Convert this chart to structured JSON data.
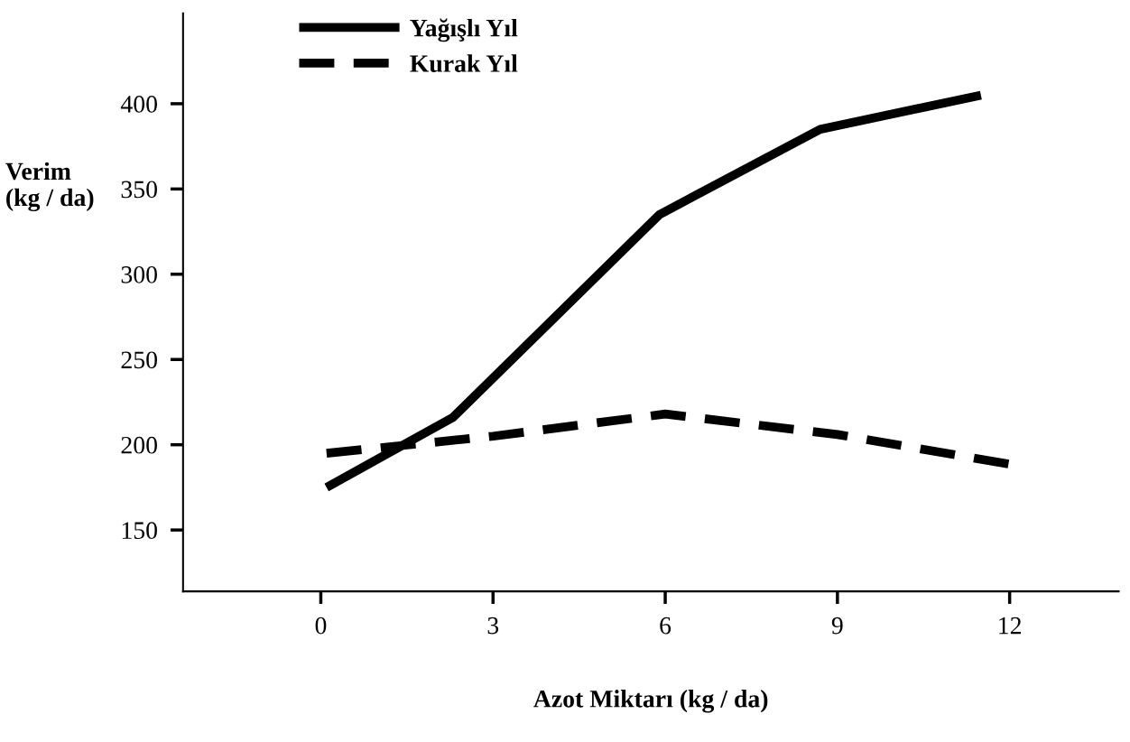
{
  "chart_data": {
    "type": "line",
    "xlabel": "Azot Miktarı (kg / da)",
    "ylabel": "Verim\n(kg / da)",
    "xlim": [
      -2.4,
      13.9
    ],
    "xticks": [
      0,
      3,
      6,
      9,
      12
    ],
    "ylim": [
      114,
      453
    ],
    "yticks": [
      150,
      200,
      250,
      300,
      350,
      400
    ],
    "grid": false,
    "legend": "top left",
    "marker": "none",
    "series": [
      {
        "name": "Yağışlı Yıl",
        "color": "#000000",
        "line_style": "solid",
        "x": [
          0.1,
          2.3,
          5.9,
          8.7,
          11.5
        ],
        "values": [
          175,
          216,
          335,
          385,
          405
        ]
      },
      {
        "name": "Kurak Yıl",
        "color": "#000000",
        "line_style": "dashed",
        "x": [
          0.1,
          3,
          6,
          9,
          12.1
        ],
        "values": [
          195,
          205,
          218,
          206,
          188
        ]
      }
    ]
  }
}
